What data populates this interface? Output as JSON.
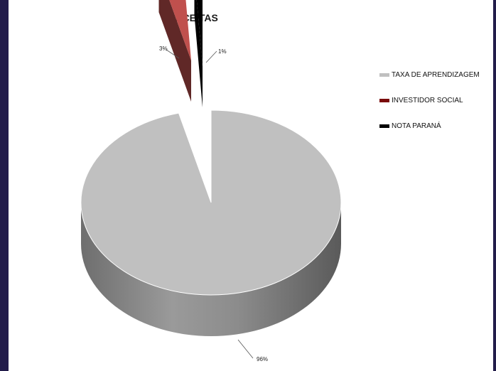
{
  "chart_data": {
    "type": "pie",
    "title": "RECEITAS",
    "style": "3d-exploded",
    "legend_position": "right",
    "series": [
      {
        "name": "TAXA DE APRENDIZAGEM",
        "value": 96,
        "label": "96%",
        "color": "#c0c0c0"
      },
      {
        "name": "INVESTIDOR SOCIAL",
        "value": 3,
        "label": "3%",
        "color": "#c0504d"
      },
      {
        "name": "NOTA PARANÁ",
        "value": 1,
        "label": "1%",
        "color": "#000000"
      }
    ]
  },
  "colors": {
    "background": "#221c4a",
    "panel": "#ffffff"
  }
}
